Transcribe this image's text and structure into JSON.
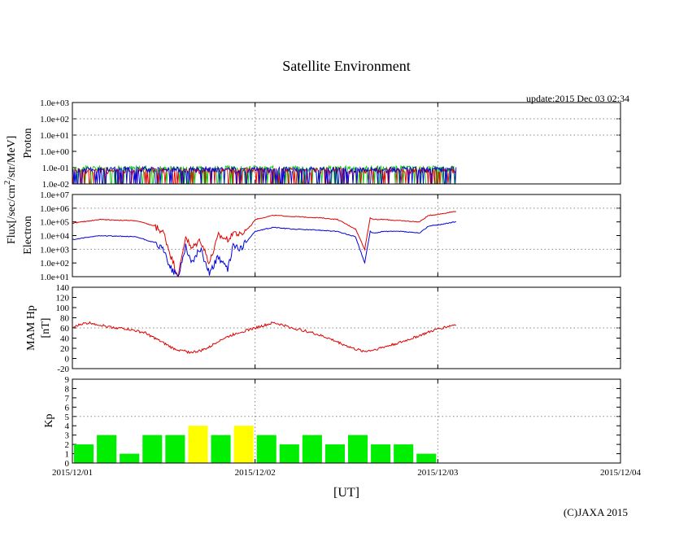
{
  "chart_data": {
    "type": "line",
    "title": "Satellite Environment",
    "update_label": "update:2015 Dec 03 02:34",
    "shared_ylabel": "Flux[/sec/cm2/str/MeV]",
    "shared_ylabel_main": "Flux[/sec/cm",
    "shared_ylabel_sup": "2",
    "shared_ylabel_tail": "/str/MeV]",
    "xlabel": "[UT]",
    "copyright": "(C)JAXA 2015",
    "x_ticks": [
      "2015/12/01",
      "2015/12/02",
      "2015/12/03",
      "2015/12/04"
    ],
    "x_range_days": [
      0,
      3
    ],
    "data_end_day": 2.1,
    "panels": [
      {
        "id": "proton",
        "ylabel": "Proton",
        "scale": "log",
        "ylim": [
          0.01,
          1000
        ],
        "tick_labels": [
          "1.0e+03",
          "1.0e+02",
          "1.0e+01",
          "1.0e+00",
          "1.0e-01",
          "1.0e-02"
        ],
        "series": [
          {
            "name": "green",
            "color": "#00c800",
            "level": 0.08
          },
          {
            "name": "red",
            "color": "#e00000",
            "level": 0.06
          },
          {
            "name": "blue",
            "color": "#0000dd",
            "level": 0.07
          }
        ]
      },
      {
        "id": "electron",
        "ylabel": "Electron",
        "scale": "log",
        "ylim": [
          10,
          10000000
        ],
        "tick_labels": [
          "1.0e+07",
          "1.0e+06",
          "1.0e+05",
          "1.0e+04",
          "1.0e+03",
          "1.0e+02",
          "1.0e+01"
        ],
        "series": [
          {
            "name": "red",
            "color": "#e00000",
            "x": [
              0,
              0.15,
              0.35,
              0.45,
              0.5,
              0.54,
              0.58,
              0.62,
              0.65,
              0.7,
              0.75,
              0.8,
              0.85,
              0.88,
              0.92,
              0.98,
              1.0,
              1.1,
              1.2,
              1.35,
              1.45,
              1.55,
              1.6,
              1.63,
              1.65,
              1.7,
              1.8,
              1.9,
              1.95,
              2.0,
              2.1
            ],
            "values": [
              80000,
              150000,
              120000,
              50000,
              15000,
              300,
              10,
              10000,
              1000,
              5000,
              100,
              10000,
              5000,
              20000,
              10000,
              60000,
              150000,
              300000,
              250000,
              200000,
              150000,
              30000,
              1000,
              200000,
              150000,
              150000,
              120000,
              100000,
              300000,
              350000,
              600000
            ]
          },
          {
            "name": "blue",
            "color": "#0000dd",
            "x": [
              0,
              0.15,
              0.35,
              0.45,
              0.5,
              0.54,
              0.58,
              0.62,
              0.65,
              0.7,
              0.75,
              0.8,
              0.85,
              0.88,
              0.92,
              0.98,
              1.0,
              1.1,
              1.2,
              1.35,
              1.45,
              1.55,
              1.6,
              1.63,
              1.65,
              1.7,
              1.8,
              1.9,
              1.95,
              2.0,
              2.1
            ],
            "values": [
              5000,
              10000,
              8000,
              3000,
              800,
              40,
              10,
              2000,
              100,
              1000,
              20,
              300,
              30,
              2000,
              1000,
              10000,
              20000,
              40000,
              30000,
              25000,
              20000,
              8000,
              100,
              20000,
              15000,
              20000,
              20000,
              15000,
              50000,
              60000,
              100000
            ]
          }
        ]
      },
      {
        "id": "mamhp",
        "ylabel": "MAM Hp",
        "ylabel2": "[nT]",
        "scale": "linear",
        "ylim": [
          -20,
          140
        ],
        "tick_labels": [
          "140",
          "120",
          "100",
          "80",
          "60",
          "40",
          "20",
          "0",
          "-20"
        ],
        "series": [
          {
            "name": "Hp",
            "color": "#e00000",
            "x": [
              0,
              0.05,
              0.1,
              0.2,
              0.3,
              0.4,
              0.5,
              0.55,
              0.6,
              0.65,
              0.7,
              0.75,
              0.8,
              0.9,
              1.0,
              1.05,
              1.1,
              1.15,
              1.2,
              1.3,
              1.4,
              1.5,
              1.55,
              1.6,
              1.65,
              1.7,
              1.8,
              1.9,
              2.0,
              2.1
            ],
            "values": [
              60,
              68,
              70,
              62,
              58,
              50,
              30,
              20,
              15,
              12,
              15,
              22,
              35,
              50,
              60,
              65,
              70,
              66,
              60,
              52,
              40,
              25,
              18,
              14,
              17,
              22,
              32,
              45,
              58,
              67
            ]
          }
        ]
      },
      {
        "id": "kp",
        "ylabel": "Kp",
        "scale": "linear",
        "type": "bar",
        "ylim": [
          0,
          9
        ],
        "tick_labels": [
          "9",
          "8",
          "7",
          "6",
          "5",
          "4",
          "3",
          "2",
          "1",
          "0"
        ],
        "bar_width_days": 0.125,
        "colors": {
          "normal": "#00ee00",
          "elevated": "#ffff00"
        },
        "values": [
          2,
          3,
          1,
          3,
          3,
          4,
          3,
          4,
          3,
          2,
          3,
          2,
          3,
          2,
          2,
          1
        ]
      }
    ]
  }
}
